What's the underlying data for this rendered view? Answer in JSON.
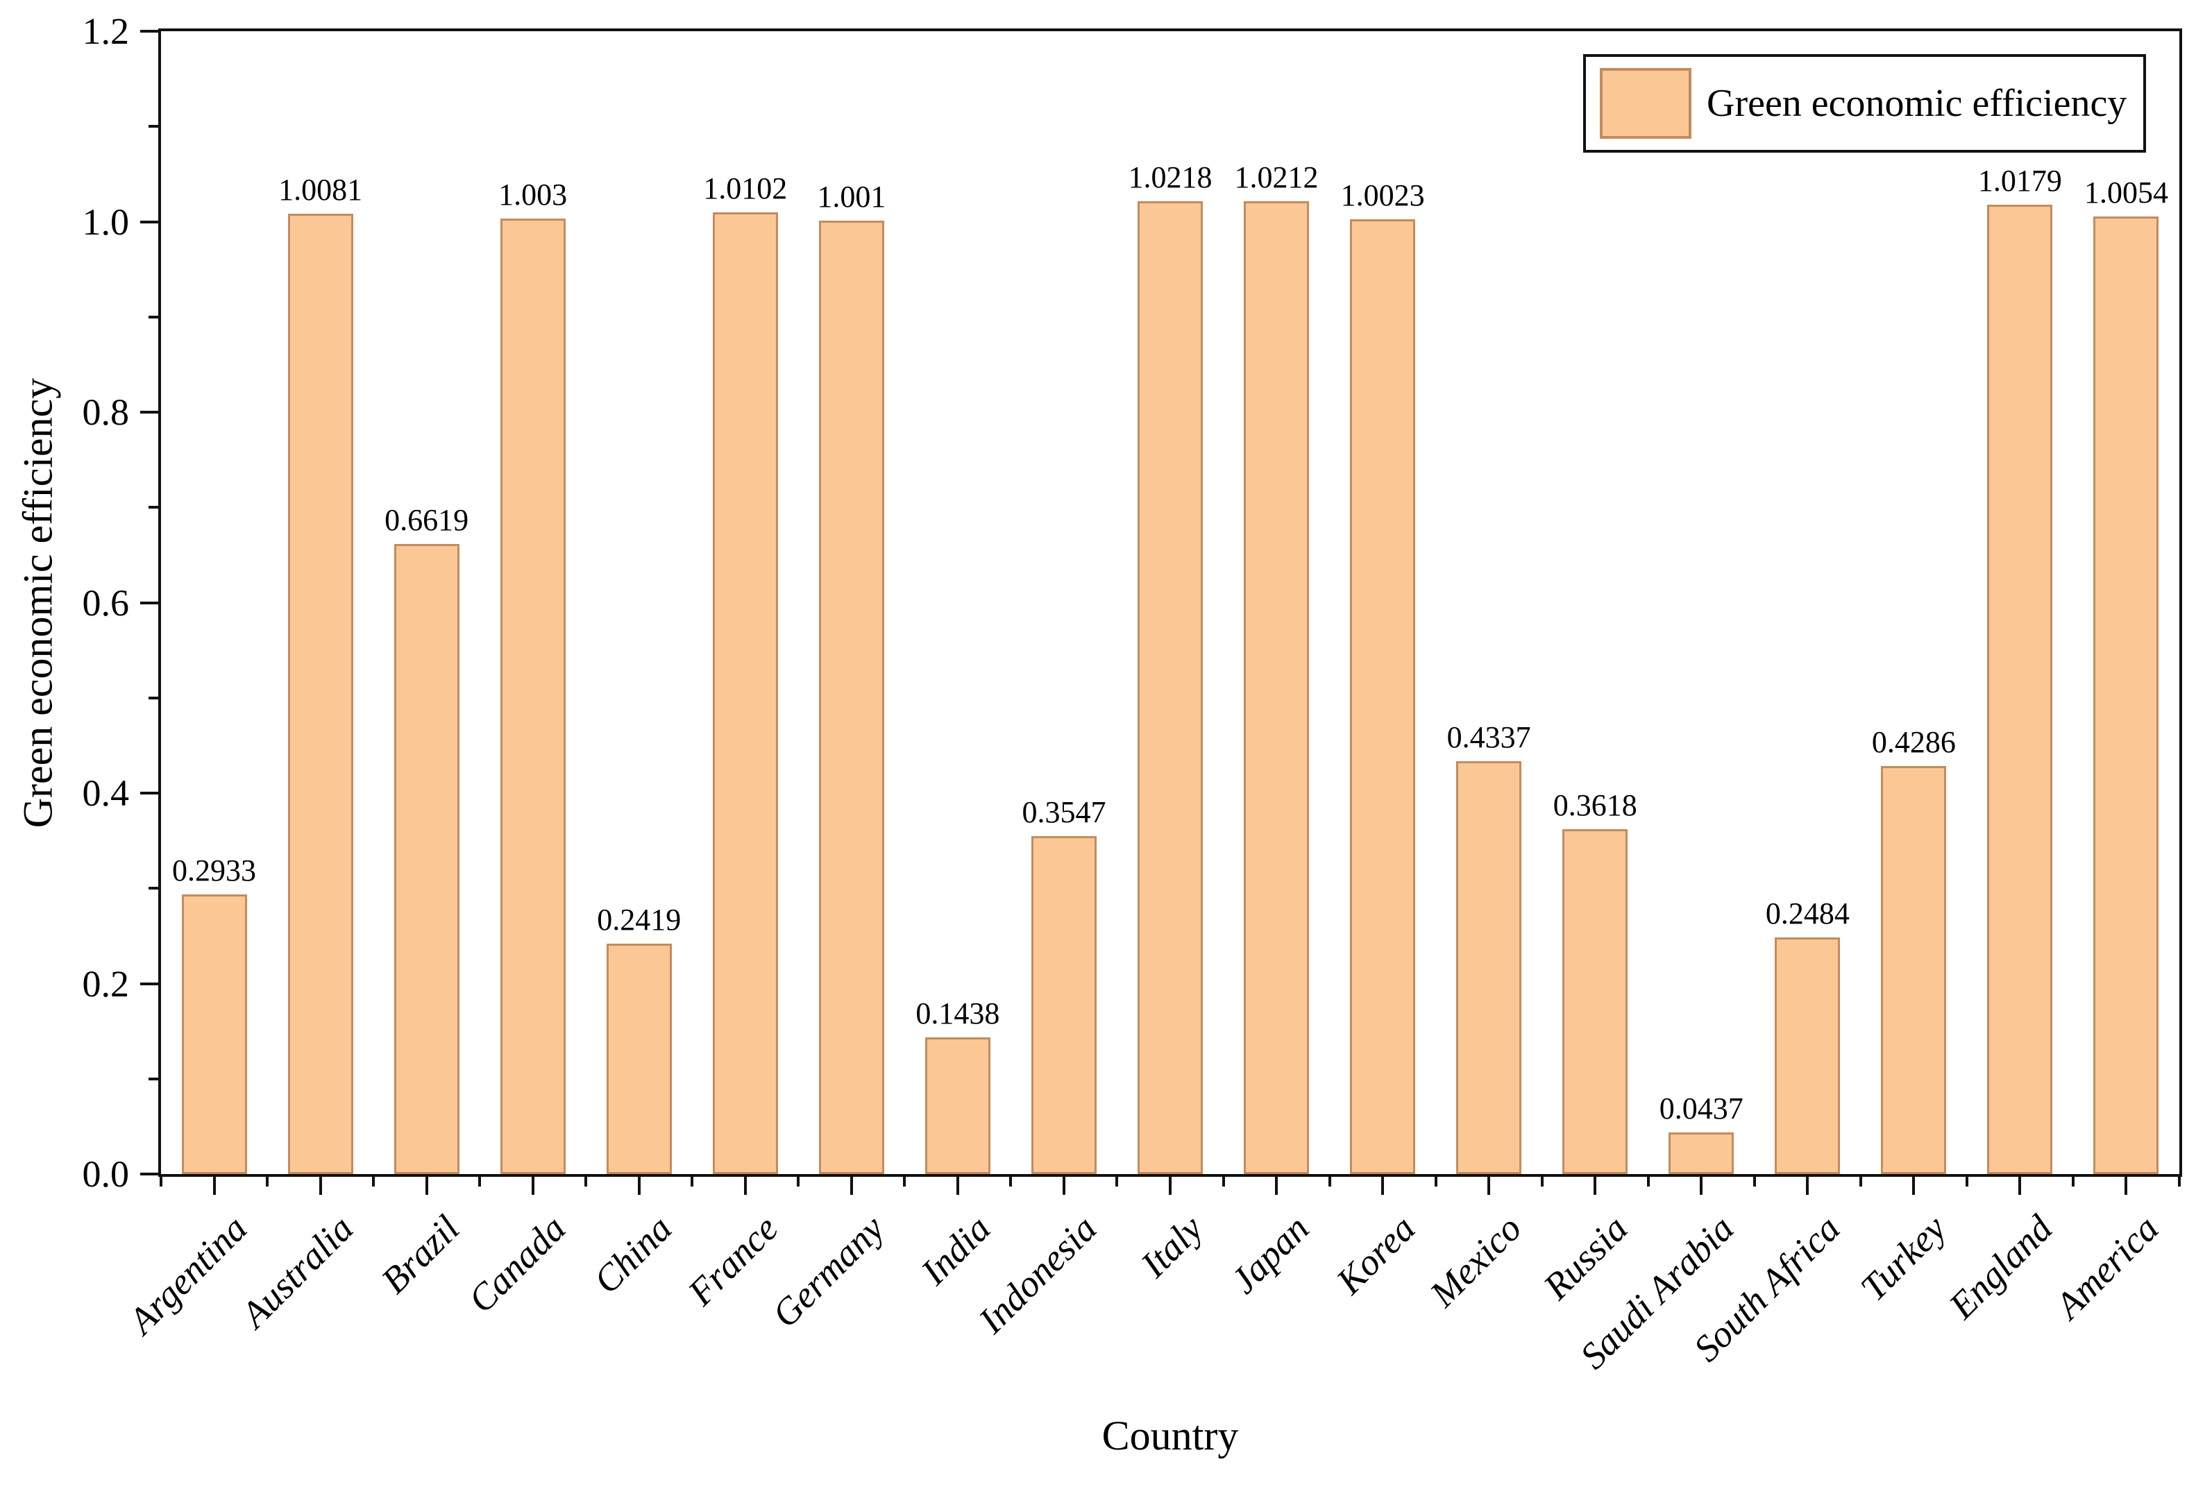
{
  "figure": {
    "background": "#ffffff"
  },
  "chart_data": {
    "type": "bar",
    "title": "",
    "xlabel": "Country",
    "ylabel": "Green economic efficiency",
    "categories": [
      "Argentina",
      "Australia",
      "Brazil",
      "Canada",
      "China",
      "France",
      "Germany",
      "India",
      "Indonesia",
      "Italy",
      "Japan",
      "Korea",
      "Mexico",
      "Russia",
      "Saudi Arabia",
      "South Africa",
      "Turkey",
      "England",
      "America"
    ],
    "values": [
      0.2933,
      1.0081,
      0.6619,
      1.003,
      0.2419,
      1.0102,
      1.001,
      0.1438,
      0.3547,
      1.0218,
      1.0212,
      1.0023,
      0.4337,
      0.3618,
      0.0437,
      0.2484,
      0.4286,
      1.0179,
      1.0054
    ],
    "value_labels": [
      "0.2933",
      "1.0081",
      "0.6619",
      "1.003",
      "0.2419",
      "1.0102",
      "1.001",
      "0.1438",
      "0.3547",
      "1.0218",
      "1.0212",
      "1.0023",
      "0.4337",
      "0.3618",
      "0.0437",
      "0.2484",
      "0.4286",
      "1.0179",
      "1.0054"
    ],
    "ylim": [
      0,
      1.2
    ],
    "ytick_step": 0.2,
    "yminor_step": 0.1,
    "grid": false,
    "legend": {
      "position": "top-right",
      "entries": [
        {
          "label": "Green economic efficiency",
          "swatch_fill": "#FBC795",
          "swatch_border": "#C28C60"
        }
      ]
    },
    "bar_fill": "#FBC795",
    "bar_border": "#C28C60",
    "axis_color": "#111111",
    "text_color": "#000000"
  }
}
